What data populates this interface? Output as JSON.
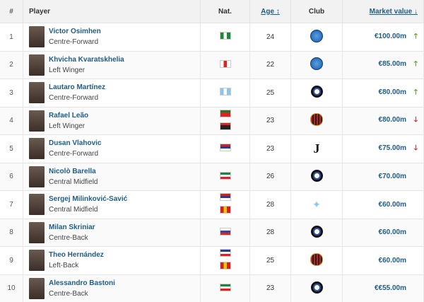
{
  "header": {
    "num": "#",
    "player": "Player",
    "nat": "Nat.",
    "age": "Age ↕",
    "club": "Club",
    "market_value": "Market value ↓"
  },
  "players": [
    {
      "rank": "1",
      "name": "Victor Osimhen",
      "position": "Centre-Forward",
      "flags": [
        [
          "#1a8a3a",
          "#fff",
          "#1a8a3a"
        ]
      ],
      "age": "24",
      "club": "napoli",
      "value": "€100.00m",
      "trend": "up"
    },
    {
      "rank": "2",
      "name": "Khvicha Kvaratskhelia",
      "position": "Left Winger",
      "flags": [
        [
          "#fff",
          "#d22",
          "#fff"
        ]
      ],
      "age": "22",
      "club": "napoli",
      "value": "€85.00m",
      "trend": "up"
    },
    {
      "rank": "3",
      "name": "Lautaro Martínez",
      "position": "Centre-Forward",
      "flags": [
        [
          "#8cc4ea",
          "#fff",
          "#8cc4ea"
        ]
      ],
      "age": "25",
      "club": "inter",
      "value": "€80.00m",
      "trend": "up"
    },
    {
      "rank": "4",
      "name": "Rafael Leão",
      "position": "Left Winger",
      "flags": [
        [
          "#1a7a2a",
          "#d22",
          "#d22"
        ],
        [
          "#d22",
          "#222",
          "#222"
        ]
      ],
      "age": "23",
      "club": "milan",
      "value": "€80.00m",
      "trend": "down"
    },
    {
      "rank": "5",
      "name": "Dusan Vlahovic",
      "position": "Centre-Forward",
      "flags": [
        [
          "#c22",
          "#2a3a8a",
          "#fff"
        ]
      ],
      "age": "23",
      "club": "juventus",
      "value": "€75.00m",
      "trend": "down"
    },
    {
      "rank": "6",
      "name": "Nicolò Barella",
      "position": "Central Midfield",
      "flags": [
        [
          "#1a8a3a",
          "#fff",
          "#d22"
        ]
      ],
      "age": "26",
      "club": "inter",
      "value": "€70.00m",
      "trend": ""
    },
    {
      "rank": "7",
      "name": "Sergej Milinković-Savić",
      "position": "Central Midfield",
      "flags": [
        [
          "#c22",
          "#2a3a8a",
          "#fff"
        ],
        [
          "#c22",
          "#f4c400",
          "#c22"
        ]
      ],
      "age": "28",
      "club": "lazio",
      "value": "€60.00m",
      "trend": ""
    },
    {
      "rank": "8",
      "name": "Milan Skriniar",
      "position": "Centre-Back",
      "flags": [
        [
          "#fff",
          "#2a4aa8",
          "#d22"
        ]
      ],
      "age": "28",
      "club": "inter",
      "value": "€60.00m",
      "trend": ""
    },
    {
      "rank": "9",
      "name": "Theo Hernández",
      "position": "Left-Back",
      "flags": [
        [
          "#2a3a9a",
          "#fff",
          "#d22"
        ],
        [
          "#c22",
          "#f4c400",
          "#c22"
        ]
      ],
      "age": "25",
      "club": "milan",
      "value": "€60.00m",
      "trend": ""
    },
    {
      "rank": "10",
      "name": "Alessandro Bastoni",
      "position": "Centre-Back",
      "flags": [
        [
          "#1a8a3a",
          "#fff",
          "#d22"
        ]
      ],
      "age": "23",
      "club": "inter",
      "value": "€€55.00m",
      "trend": ""
    }
  ],
  "colors": {
    "link": "#1d5c87",
    "up": "#5a9a1a",
    "down": "#c0262c"
  }
}
